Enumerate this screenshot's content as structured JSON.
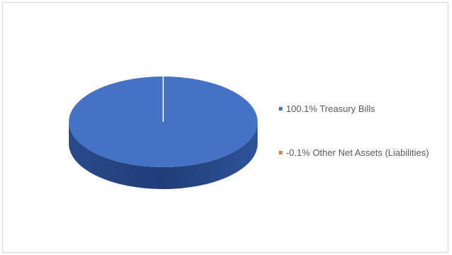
{
  "chart_data": {
    "type": "pie",
    "title": "",
    "categories": [
      "Treasury Bills",
      "Other Net Assets (Liabilities)"
    ],
    "values": [
      100.1,
      -0.1
    ],
    "labels": [
      "100.1% Treasury Bills",
      "-0.1% Other Net Assets (Liabilities)"
    ],
    "colors": [
      "#4472c4",
      "#ed7d31"
    ],
    "legend_position": "right",
    "style": "3d"
  }
}
